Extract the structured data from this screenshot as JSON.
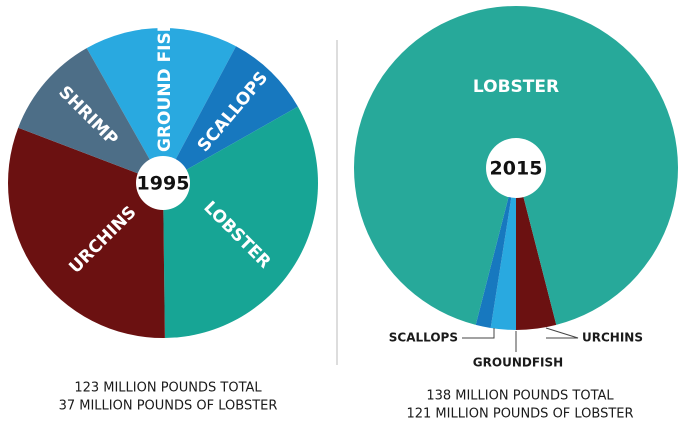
{
  "chart_data": [
    {
      "type": "pie",
      "title": "1995",
      "categories": [
        "GROUND FISH",
        "SCALLOPS",
        "LOBSTER",
        "URCHINS",
        "SHRIMP"
      ],
      "values": [
        16,
        9,
        33,
        31,
        11
      ],
      "colors": [
        "#29a9e0",
        "#1778bf",
        "#17a595",
        "#6b1111",
        "#4d6e87"
      ],
      "caption": [
        "123 MILLION POUNDS TOTAL",
        "37 MILLION POUNDS OF LOBSTER"
      ]
    },
    {
      "type": "pie",
      "title": "2015",
      "categories": [
        "URCHINS",
        "GROUNDFISH",
        "SCALLOPS",
        "LOBSTER"
      ],
      "values": [
        4,
        2.5,
        1.5,
        92
      ],
      "colors": [
        "#6b1111",
        "#29a9e0",
        "#1778bf",
        "#27a99a"
      ],
      "caption": [
        "138 MILLION POUNDS TOTAL",
        "121 MILLION POUNDS OF LOBSTER"
      ]
    }
  ]
}
